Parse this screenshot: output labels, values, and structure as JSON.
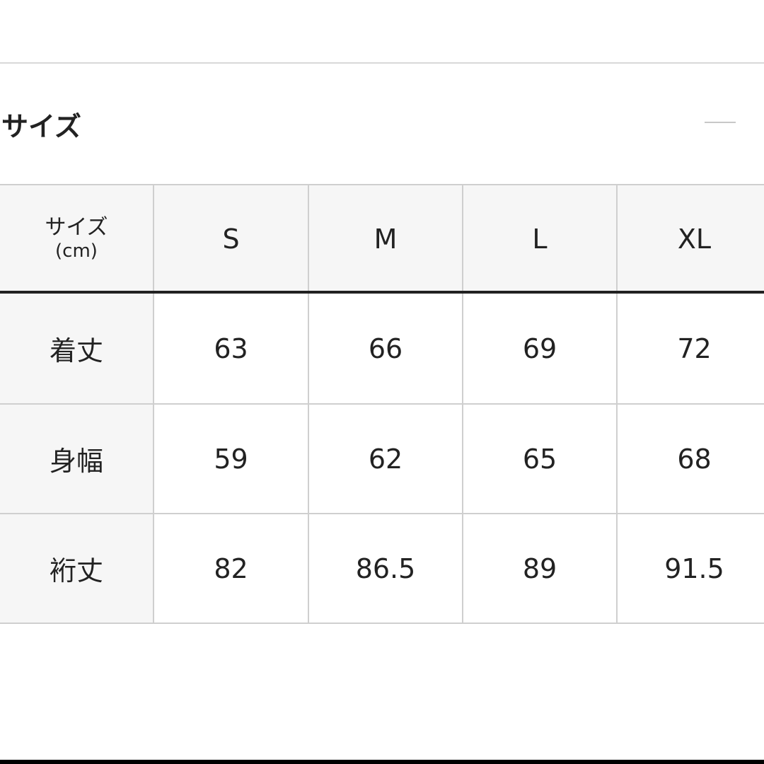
{
  "section": {
    "title": "サイズ",
    "collapse_icon": "minus-icon"
  },
  "table": {
    "corner_label": "サイズ",
    "corner_unit": "(cm)",
    "columns": [
      "S",
      "M",
      "L",
      "XL"
    ],
    "rows": [
      {
        "label": "着丈",
        "values": [
          "63",
          "66",
          "69",
          "72"
        ]
      },
      {
        "label": "身幅",
        "values": [
          "59",
          "62",
          "65",
          "68"
        ]
      },
      {
        "label": "裄丈",
        "values": [
          "82",
          "86.5",
          "89",
          "91.5"
        ]
      }
    ]
  }
}
